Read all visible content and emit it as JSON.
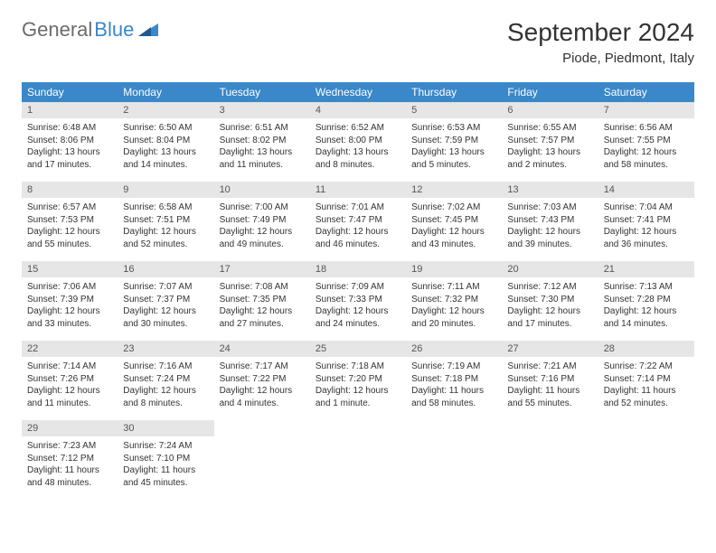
{
  "logo": {
    "part1": "General",
    "part2": "Blue"
  },
  "title": "September 2024",
  "location": "Piode, Piedmont, Italy",
  "colors": {
    "header_bg": "#3a87c9",
    "header_text": "#ffffff",
    "daynum_bg": "#e6e6e6",
    "text": "#333333",
    "page_bg": "#ffffff"
  },
  "weekdays": [
    "Sunday",
    "Monday",
    "Tuesday",
    "Wednesday",
    "Thursday",
    "Friday",
    "Saturday"
  ],
  "weeks": [
    [
      {
        "n": "1",
        "sr": "Sunrise: 6:48 AM",
        "ss": "Sunset: 8:06 PM",
        "dl": "Daylight: 13 hours and 17 minutes."
      },
      {
        "n": "2",
        "sr": "Sunrise: 6:50 AM",
        "ss": "Sunset: 8:04 PM",
        "dl": "Daylight: 13 hours and 14 minutes."
      },
      {
        "n": "3",
        "sr": "Sunrise: 6:51 AM",
        "ss": "Sunset: 8:02 PM",
        "dl": "Daylight: 13 hours and 11 minutes."
      },
      {
        "n": "4",
        "sr": "Sunrise: 6:52 AM",
        "ss": "Sunset: 8:00 PM",
        "dl": "Daylight: 13 hours and 8 minutes."
      },
      {
        "n": "5",
        "sr": "Sunrise: 6:53 AM",
        "ss": "Sunset: 7:59 PM",
        "dl": "Daylight: 13 hours and 5 minutes."
      },
      {
        "n": "6",
        "sr": "Sunrise: 6:55 AM",
        "ss": "Sunset: 7:57 PM",
        "dl": "Daylight: 13 hours and 2 minutes."
      },
      {
        "n": "7",
        "sr": "Sunrise: 6:56 AM",
        "ss": "Sunset: 7:55 PM",
        "dl": "Daylight: 12 hours and 58 minutes."
      }
    ],
    [
      {
        "n": "8",
        "sr": "Sunrise: 6:57 AM",
        "ss": "Sunset: 7:53 PM",
        "dl": "Daylight: 12 hours and 55 minutes."
      },
      {
        "n": "9",
        "sr": "Sunrise: 6:58 AM",
        "ss": "Sunset: 7:51 PM",
        "dl": "Daylight: 12 hours and 52 minutes."
      },
      {
        "n": "10",
        "sr": "Sunrise: 7:00 AM",
        "ss": "Sunset: 7:49 PM",
        "dl": "Daylight: 12 hours and 49 minutes."
      },
      {
        "n": "11",
        "sr": "Sunrise: 7:01 AM",
        "ss": "Sunset: 7:47 PM",
        "dl": "Daylight: 12 hours and 46 minutes."
      },
      {
        "n": "12",
        "sr": "Sunrise: 7:02 AM",
        "ss": "Sunset: 7:45 PM",
        "dl": "Daylight: 12 hours and 43 minutes."
      },
      {
        "n": "13",
        "sr": "Sunrise: 7:03 AM",
        "ss": "Sunset: 7:43 PM",
        "dl": "Daylight: 12 hours and 39 minutes."
      },
      {
        "n": "14",
        "sr": "Sunrise: 7:04 AM",
        "ss": "Sunset: 7:41 PM",
        "dl": "Daylight: 12 hours and 36 minutes."
      }
    ],
    [
      {
        "n": "15",
        "sr": "Sunrise: 7:06 AM",
        "ss": "Sunset: 7:39 PM",
        "dl": "Daylight: 12 hours and 33 minutes."
      },
      {
        "n": "16",
        "sr": "Sunrise: 7:07 AM",
        "ss": "Sunset: 7:37 PM",
        "dl": "Daylight: 12 hours and 30 minutes."
      },
      {
        "n": "17",
        "sr": "Sunrise: 7:08 AM",
        "ss": "Sunset: 7:35 PM",
        "dl": "Daylight: 12 hours and 27 minutes."
      },
      {
        "n": "18",
        "sr": "Sunrise: 7:09 AM",
        "ss": "Sunset: 7:33 PM",
        "dl": "Daylight: 12 hours and 24 minutes."
      },
      {
        "n": "19",
        "sr": "Sunrise: 7:11 AM",
        "ss": "Sunset: 7:32 PM",
        "dl": "Daylight: 12 hours and 20 minutes."
      },
      {
        "n": "20",
        "sr": "Sunrise: 7:12 AM",
        "ss": "Sunset: 7:30 PM",
        "dl": "Daylight: 12 hours and 17 minutes."
      },
      {
        "n": "21",
        "sr": "Sunrise: 7:13 AM",
        "ss": "Sunset: 7:28 PM",
        "dl": "Daylight: 12 hours and 14 minutes."
      }
    ],
    [
      {
        "n": "22",
        "sr": "Sunrise: 7:14 AM",
        "ss": "Sunset: 7:26 PM",
        "dl": "Daylight: 12 hours and 11 minutes."
      },
      {
        "n": "23",
        "sr": "Sunrise: 7:16 AM",
        "ss": "Sunset: 7:24 PM",
        "dl": "Daylight: 12 hours and 8 minutes."
      },
      {
        "n": "24",
        "sr": "Sunrise: 7:17 AM",
        "ss": "Sunset: 7:22 PM",
        "dl": "Daylight: 12 hours and 4 minutes."
      },
      {
        "n": "25",
        "sr": "Sunrise: 7:18 AM",
        "ss": "Sunset: 7:20 PM",
        "dl": "Daylight: 12 hours and 1 minute."
      },
      {
        "n": "26",
        "sr": "Sunrise: 7:19 AM",
        "ss": "Sunset: 7:18 PM",
        "dl": "Daylight: 11 hours and 58 minutes."
      },
      {
        "n": "27",
        "sr": "Sunrise: 7:21 AM",
        "ss": "Sunset: 7:16 PM",
        "dl": "Daylight: 11 hours and 55 minutes."
      },
      {
        "n": "28",
        "sr": "Sunrise: 7:22 AM",
        "ss": "Sunset: 7:14 PM",
        "dl": "Daylight: 11 hours and 52 minutes."
      }
    ],
    [
      {
        "n": "29",
        "sr": "Sunrise: 7:23 AM",
        "ss": "Sunset: 7:12 PM",
        "dl": "Daylight: 11 hours and 48 minutes."
      },
      {
        "n": "30",
        "sr": "Sunrise: 7:24 AM",
        "ss": "Sunset: 7:10 PM",
        "dl": "Daylight: 11 hours and 45 minutes."
      },
      null,
      null,
      null,
      null,
      null
    ]
  ]
}
